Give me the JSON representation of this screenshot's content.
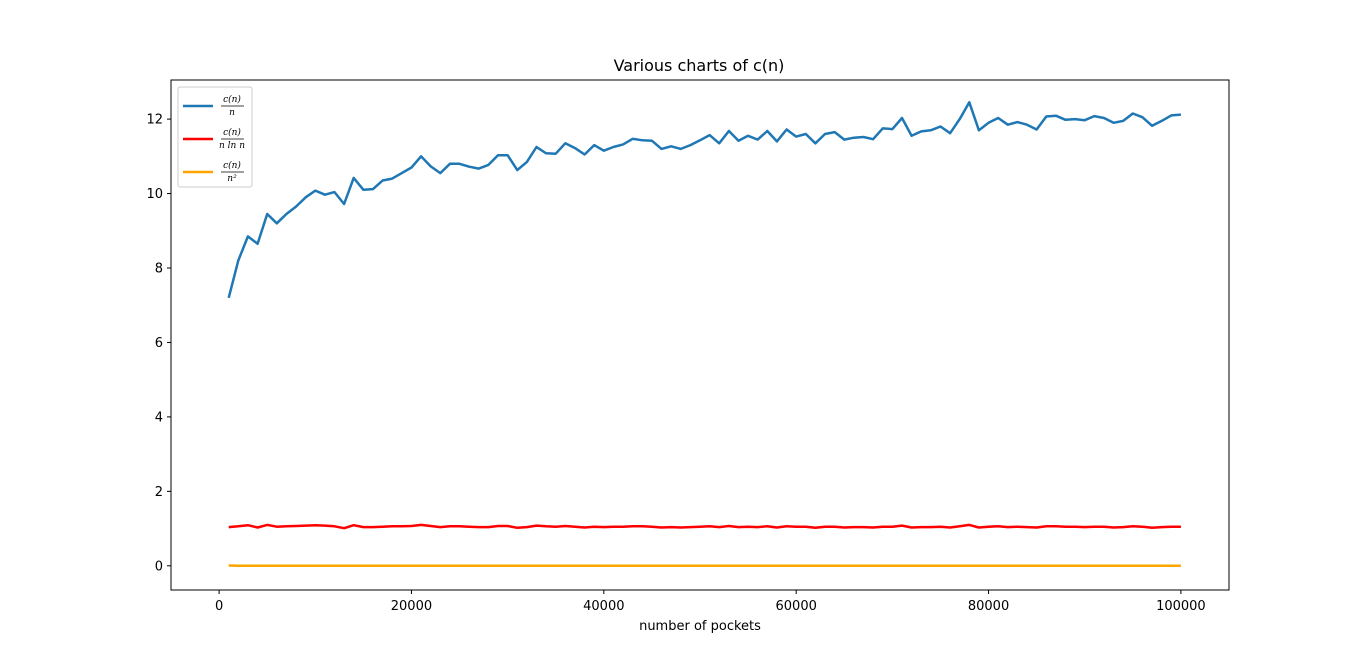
{
  "chart_data": {
    "type": "line",
    "title": "Various charts of c(n)",
    "xlabel": "number of pockets",
    "ylabel": "",
    "xlim": [
      -5000,
      105000
    ],
    "ylim": [
      -0.65,
      13.05
    ],
    "xticks": [
      0,
      20000,
      40000,
      60000,
      80000,
      100000
    ],
    "xtick_labels": [
      "0",
      "20000",
      "40000",
      "60000",
      "80000",
      "100000"
    ],
    "yticks": [
      0,
      2,
      4,
      6,
      8,
      10,
      12
    ],
    "ytick_labels": [
      "0",
      "2",
      "4",
      "6",
      "8",
      "10",
      "12"
    ],
    "grid": false,
    "legend_position": "top-left",
    "x": [
      1000,
      2000,
      3000,
      4000,
      5000,
      6000,
      7000,
      8000,
      9000,
      10000,
      11000,
      12000,
      13000,
      14000,
      15000,
      16000,
      17000,
      18000,
      19000,
      20000,
      21000,
      22000,
      23000,
      24000,
      25000,
      26000,
      27000,
      28000,
      29000,
      30000,
      31000,
      32000,
      33000,
      34000,
      35000,
      36000,
      37000,
      38000,
      39000,
      40000,
      41000,
      42000,
      43000,
      44000,
      45000,
      46000,
      47000,
      48000,
      49000,
      50000,
      51000,
      52000,
      53000,
      54000,
      55000,
      56000,
      57000,
      58000,
      59000,
      60000,
      61000,
      62000,
      63000,
      64000,
      65000,
      66000,
      67000,
      68000,
      69000,
      70000,
      71000,
      72000,
      73000,
      74000,
      75000,
      76000,
      77000,
      78000,
      79000,
      80000,
      81000,
      82000,
      83000,
      84000,
      85000,
      86000,
      87000,
      88000,
      89000,
      90000,
      91000,
      92000,
      93000,
      94000,
      95000,
      96000,
      97000,
      98000,
      99000,
      100000
    ],
    "series": [
      {
        "name": "c(n)/n",
        "legend": {
          "numerator": "c(n)",
          "denominator": "n"
        },
        "color": "#1f77b4",
        "values": [
          7.2,
          8.2,
          8.85,
          8.65,
          9.45,
          9.2,
          9.45,
          9.65,
          9.9,
          10.08,
          9.97,
          10.04,
          9.72,
          10.42,
          10.1,
          10.12,
          10.35,
          10.4,
          10.55,
          10.7,
          11.0,
          10.73,
          10.55,
          10.8,
          10.8,
          10.72,
          10.67,
          10.77,
          11.03,
          11.03,
          10.63,
          10.85,
          11.25,
          11.08,
          11.07,
          11.35,
          11.22,
          11.05,
          11.3,
          11.15,
          11.25,
          11.32,
          11.47,
          11.43,
          11.42,
          11.2,
          11.27,
          11.2,
          11.3,
          11.43,
          11.57,
          11.35,
          11.68,
          11.42,
          11.55,
          11.45,
          11.68,
          11.4,
          11.72,
          11.53,
          11.6,
          11.35,
          11.6,
          11.65,
          11.45,
          11.5,
          11.52,
          11.46,
          11.75,
          11.73,
          12.03,
          11.55,
          11.67,
          11.7,
          11.8,
          11.62,
          12.0,
          12.45,
          11.7,
          11.9,
          12.03,
          11.85,
          11.92,
          11.85,
          11.72,
          12.07,
          12.09,
          11.98,
          12.0,
          11.97,
          12.08,
          12.03,
          11.9,
          11.95,
          12.15,
          12.05,
          11.82,
          11.95,
          12.1,
          12.12
        ]
      },
      {
        "name": "c(n)/(n ln n)",
        "legend": {
          "numerator": "c(n)",
          "denominator": "n ln n"
        },
        "color": "#ff0000",
        "values": [
          1.04,
          1.06,
          1.09,
          1.03,
          1.1,
          1.05,
          1.06,
          1.07,
          1.08,
          1.09,
          1.08,
          1.06,
          1.01,
          1.09,
          1.04,
          1.04,
          1.05,
          1.06,
          1.06,
          1.07,
          1.1,
          1.07,
          1.04,
          1.06,
          1.06,
          1.05,
          1.04,
          1.04,
          1.07,
          1.07,
          1.02,
          1.04,
          1.08,
          1.06,
          1.05,
          1.07,
          1.05,
          1.03,
          1.05,
          1.04,
          1.05,
          1.05,
          1.06,
          1.06,
          1.05,
          1.03,
          1.04,
          1.03,
          1.04,
          1.05,
          1.06,
          1.04,
          1.07,
          1.04,
          1.05,
          1.04,
          1.06,
          1.03,
          1.06,
          1.05,
          1.05,
          1.02,
          1.05,
          1.05,
          1.03,
          1.04,
          1.04,
          1.03,
          1.05,
          1.05,
          1.08,
          1.03,
          1.04,
          1.04,
          1.05,
          1.03,
          1.06,
          1.1,
          1.03,
          1.05,
          1.06,
          1.04,
          1.05,
          1.04,
          1.03,
          1.06,
          1.06,
          1.05,
          1.05,
          1.04,
          1.05,
          1.05,
          1.03,
          1.04,
          1.06,
          1.05,
          1.02,
          1.04,
          1.05,
          1.05
        ]
      },
      {
        "name": "c(n)/n^2",
        "legend": {
          "numerator": "c(n)",
          "denominator": "n²"
        },
        "color": "#ffa500",
        "values": [
          0.0072,
          0.0041,
          0.0029,
          0.0022,
          0.0019,
          0.0015,
          0.0014,
          0.0012,
          0.0011,
          0.001,
          0.0009,
          0.0008,
          0.0007,
          0.0007,
          0.0007,
          0.0006,
          0.0006,
          0.0006,
          0.0006,
          0.0005,
          0.0005,
          0.0005,
          0.0005,
          0.0004,
          0.0004,
          0.0004,
          0.0004,
          0.0004,
          0.0004,
          0.0004,
          0.0003,
          0.0003,
          0.0003,
          0.0003,
          0.0003,
          0.0003,
          0.0003,
          0.0003,
          0.0003,
          0.0003,
          0.0003,
          0.0003,
          0.0003,
          0.0003,
          0.0003,
          0.0002,
          0.0002,
          0.0002,
          0.0002,
          0.0002,
          0.0002,
          0.0002,
          0.0002,
          0.0002,
          0.0002,
          0.0002,
          0.0002,
          0.0002,
          0.0002,
          0.0002,
          0.0002,
          0.0002,
          0.0002,
          0.0002,
          0.0002,
          0.0002,
          0.0002,
          0.0002,
          0.0002,
          0.0002,
          0.0002,
          0.0002,
          0.0002,
          0.0002,
          0.0002,
          0.0002,
          0.0002,
          0.0002,
          0.0001,
          0.0001,
          0.0001,
          0.0001,
          0.0001,
          0.0001,
          0.0001,
          0.0001,
          0.0001,
          0.0001,
          0.0001,
          0.0001,
          0.0001,
          0.0001,
          0.0001,
          0.0001,
          0.0001,
          0.0001,
          0.0001,
          0.0001,
          0.0001,
          0.0001
        ]
      }
    ]
  }
}
